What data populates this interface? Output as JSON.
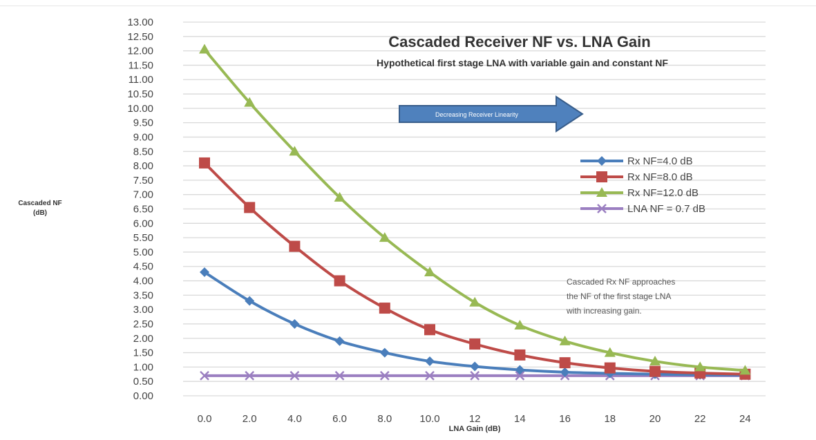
{
  "chart_data": {
    "type": "line",
    "title": "Cascaded Receiver NF vs. LNA Gain",
    "subtitle": "Hypothetical first stage LNA with variable gain and constant NF",
    "xlabel": "LNA Gain (dB)",
    "ylabel_line1": "Cascaded NF",
    "ylabel_line2": "(dB)",
    "categories": [
      "0.0",
      "2.0",
      "4.0",
      "6.0",
      "8.0",
      "10.0",
      "12",
      "14",
      "16",
      "18",
      "20",
      "22",
      "24"
    ],
    "y_ticks": [
      "0.00",
      "0.50",
      "1.00",
      "1.50",
      "2.00",
      "2.50",
      "3.00",
      "3.50",
      "4.00",
      "4.50",
      "5.00",
      "5.50",
      "6.00",
      "6.50",
      "7.00",
      "7.50",
      "8.00",
      "8.50",
      "9.00",
      "9.50",
      "10.00",
      "10.50",
      "11.00",
      "11.50",
      "12.00",
      "12.50",
      "13.00"
    ],
    "ylim": [
      0,
      13
    ],
    "grid": true,
    "legend_position": "right",
    "series": [
      {
        "name": "Rx NF=4.0 dB",
        "color": "#4a7ebb",
        "marker": "diamond",
        "values": [
          4.3,
          3.3,
          2.5,
          1.9,
          1.5,
          1.2,
          1.02,
          0.9,
          0.82,
          0.78,
          0.75,
          0.73,
          0.72
        ]
      },
      {
        "name": "Rx NF=8.0 dB",
        "color": "#be4b48",
        "marker": "square",
        "values": [
          8.1,
          6.55,
          5.2,
          4.0,
          3.05,
          2.3,
          1.8,
          1.42,
          1.15,
          0.97,
          0.85,
          0.79,
          0.75
        ]
      },
      {
        "name": "Rx NF=12.0 dB",
        "color": "#98b954",
        "marker": "triangle",
        "values": [
          12.05,
          10.2,
          8.5,
          6.9,
          5.5,
          4.3,
          3.25,
          2.45,
          1.9,
          1.5,
          1.2,
          1.0,
          0.88
        ]
      },
      {
        "name": "LNA NF = 0.7 dB",
        "color": "#9b7fc1",
        "marker": "x",
        "values": [
          0.7,
          0.7,
          0.7,
          0.7,
          0.7,
          0.7,
          0.7,
          0.7,
          0.7,
          0.7,
          0.7,
          0.7,
          0.7
        ]
      }
    ],
    "arrow_label": "Decreasing Receiver Linearity",
    "annotation": [
      "Cascaded Rx NF approaches",
      "the NF of the first stage LNA",
      "with increasing gain."
    ]
  }
}
